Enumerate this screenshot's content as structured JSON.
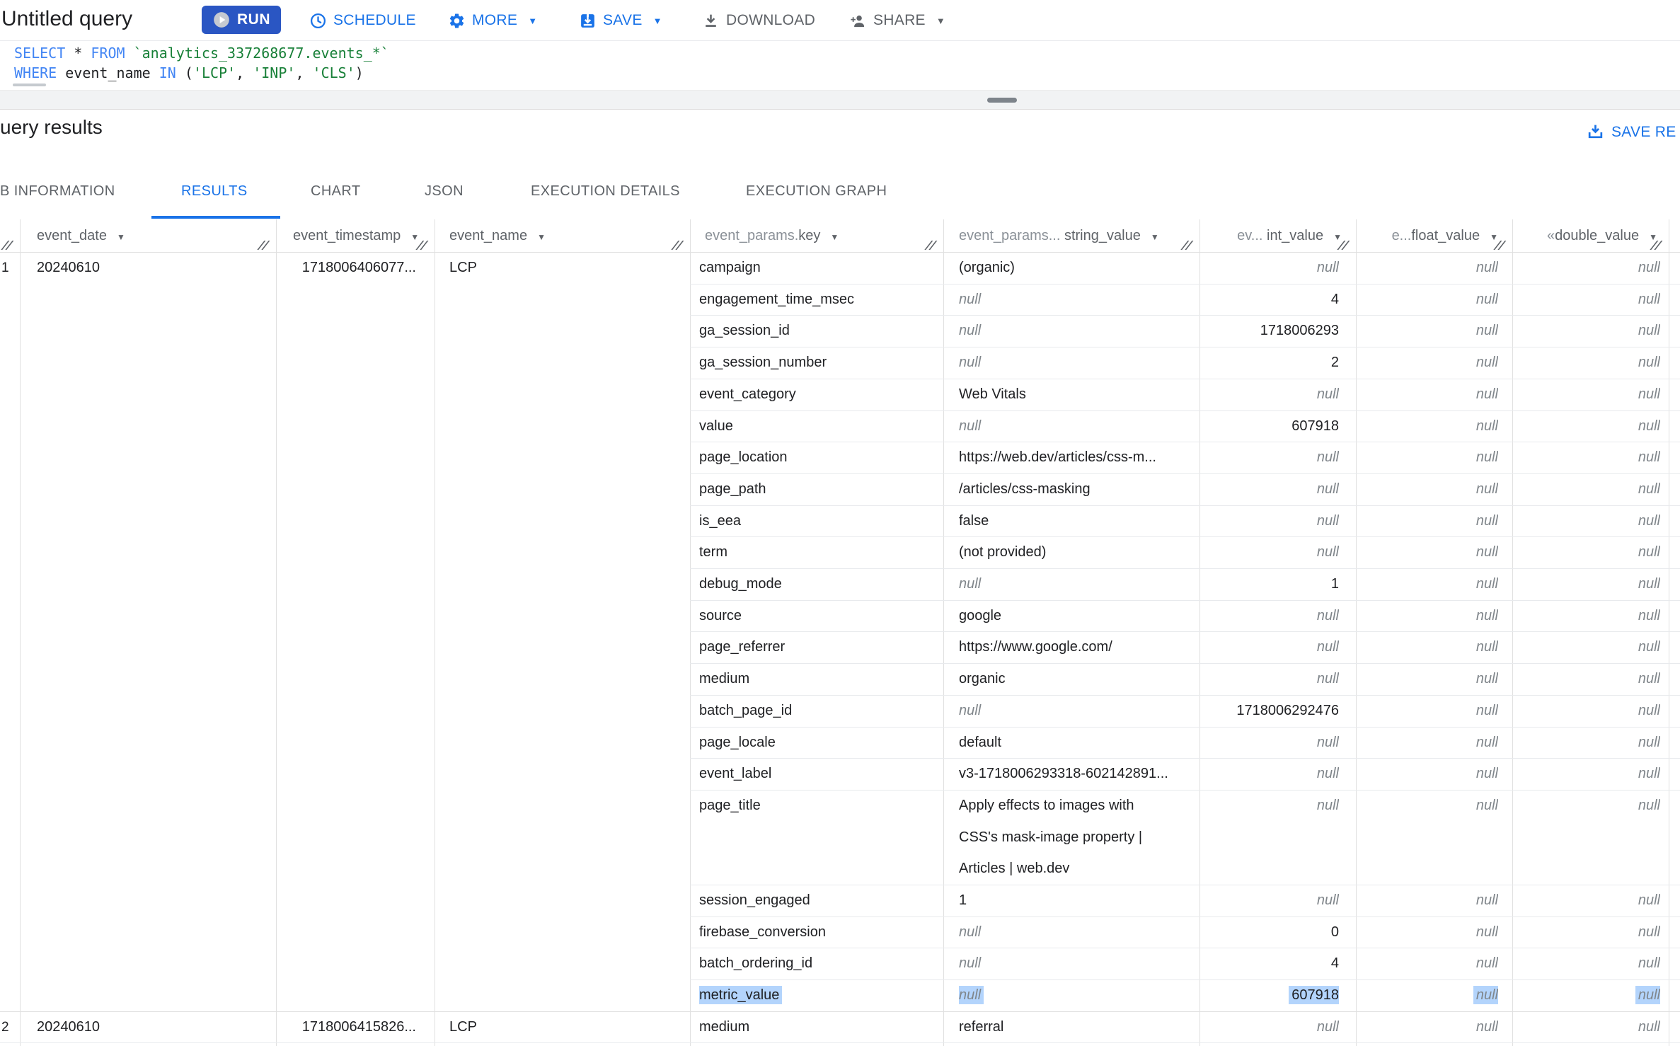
{
  "toolbar": {
    "title": "Untitled query",
    "run": "RUN",
    "schedule": "SCHEDULE",
    "more": "MORE",
    "save": "SAVE",
    "download": "DOWNLOAD",
    "share": "SHARE"
  },
  "editor": {
    "lines": [
      [
        {
          "c": "k",
          "t": "SELECT"
        },
        {
          "c": "p",
          "t": " * "
        },
        {
          "c": "k",
          "t": "FROM"
        },
        {
          "c": "p",
          "t": " "
        },
        {
          "c": "s",
          "t": "`analytics_337268677.events_*`"
        }
      ],
      [
        {
          "c": "k",
          "t": "WHERE"
        },
        {
          "c": "p",
          "t": " event_name "
        },
        {
          "c": "k",
          "t": "IN"
        },
        {
          "c": "p",
          "t": " ("
        },
        {
          "c": "s",
          "t": "'LCP'"
        },
        {
          "c": "p",
          "t": ", "
        },
        {
          "c": "s",
          "t": "'INP'"
        },
        {
          "c": "p",
          "t": ", "
        },
        {
          "c": "s",
          "t": "'CLS'"
        },
        {
          "c": "p",
          "t": ")"
        }
      ]
    ]
  },
  "results": {
    "heading": "uery results",
    "save_results": "SAVE RE",
    "tabs": [
      {
        "label": "B INFORMATION",
        "active": false
      },
      {
        "label": "RESULTS",
        "active": true
      },
      {
        "label": "CHART",
        "active": false
      },
      {
        "label": "JSON",
        "active": false
      },
      {
        "label": "EXECUTION DETAILS",
        "active": false
      },
      {
        "label": "EXECUTION GRAPH",
        "active": false
      }
    ]
  },
  "table": {
    "null_text": "null",
    "headers": [
      {
        "prefix": "",
        "label": ""
      },
      {
        "prefix": "",
        "label": "event_date"
      },
      {
        "prefix": "",
        "label": "event_timestamp"
      },
      {
        "prefix": "",
        "label": "event_name"
      },
      {
        "prefix": "event_params.",
        "label": "key"
      },
      {
        "prefix": "event_params... ",
        "label": "string_value"
      },
      {
        "prefix": "ev... ",
        "label": "int_value"
      },
      {
        "prefix": "e...",
        "label": "float_value"
      },
      {
        "prefix": "«",
        "label": "double_value"
      }
    ],
    "rows": [
      {
        "num": "1",
        "event_date": "20240610",
        "event_timestamp": "1718006406077...",
        "event_name": "LCP",
        "params": [
          {
            "k": "campaign",
            "s": "(organic)",
            "i": null,
            "f": null,
            "d": null
          },
          {
            "k": "engagement_time_msec",
            "s": null,
            "i": "4",
            "f": null,
            "d": null
          },
          {
            "k": "ga_session_id",
            "s": null,
            "i": "1718006293",
            "f": null,
            "d": null
          },
          {
            "k": "ga_session_number",
            "s": null,
            "i": "2",
            "f": null,
            "d": null
          },
          {
            "k": "event_category",
            "s": "Web Vitals",
            "i": null,
            "f": null,
            "d": null
          },
          {
            "k": "value",
            "s": null,
            "i": "607918",
            "f": null,
            "d": null
          },
          {
            "k": "page_location",
            "s": "https://web.dev/articles/css-m...",
            "i": null,
            "f": null,
            "d": null
          },
          {
            "k": "page_path",
            "s": "/articles/css-masking",
            "i": null,
            "f": null,
            "d": null
          },
          {
            "k": "is_eea",
            "s": "false",
            "i": null,
            "f": null,
            "d": null
          },
          {
            "k": "term",
            "s": "(not provided)",
            "i": null,
            "f": null,
            "d": null
          },
          {
            "k": "debug_mode",
            "s": null,
            "i": "1",
            "f": null,
            "d": null
          },
          {
            "k": "source",
            "s": "google",
            "i": null,
            "f": null,
            "d": null
          },
          {
            "k": "page_referrer",
            "s": "https://www.google.com/",
            "i": null,
            "f": null,
            "d": null
          },
          {
            "k": "medium",
            "s": "organic",
            "i": null,
            "f": null,
            "d": null
          },
          {
            "k": "batch_page_id",
            "s": null,
            "i": "1718006292476",
            "f": null,
            "d": null
          },
          {
            "k": "page_locale",
            "s": "default",
            "i": null,
            "f": null,
            "d": null
          },
          {
            "k": "event_label",
            "s": "v3-1718006293318-602142891...",
            "i": null,
            "f": null,
            "d": null
          },
          {
            "k": "page_title",
            "s": [
              "Apply effects to images with",
              "CSS's mask-image property |",
              "Articles | web.dev"
            ],
            "i": null,
            "f": null,
            "d": null,
            "tall": true
          },
          {
            "k": "session_engaged",
            "s": "1",
            "i": null,
            "f": null,
            "d": null
          },
          {
            "k": "firebase_conversion",
            "s": null,
            "i": "0",
            "f": null,
            "d": null
          },
          {
            "k": "batch_ordering_id",
            "s": null,
            "i": "4",
            "f": null,
            "d": null
          },
          {
            "k": "metric_value",
            "s": null,
            "i": "607918",
            "f": null,
            "d": null,
            "hl": true
          }
        ]
      },
      {
        "num": "2",
        "event_date": "20240610",
        "event_timestamp": "1718006415826...",
        "event_name": "LCP",
        "params": [
          {
            "k": "medium",
            "s": "referral",
            "i": null,
            "f": null,
            "d": null
          }
        ]
      }
    ]
  }
}
